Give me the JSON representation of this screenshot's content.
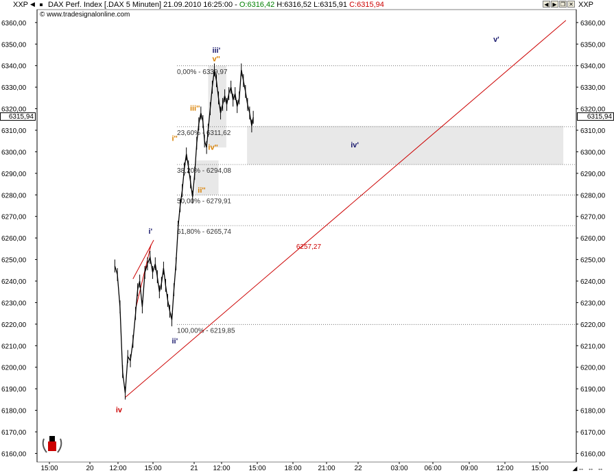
{
  "window": {
    "symbol_left": "XXP",
    "symbol_right": "XXP",
    "title": "DAX Perf. Index [.DAX  5 Minuten] 21.09.2010 16:25:00 -",
    "open": "O:6316,42",
    "high": "H:6316,52",
    "low": "L:6315,91",
    "close": "C:6315,94",
    "copyright": "© www.tradesignalonline.com",
    "last_price_label": "6315,94",
    "colors": {
      "open": "#008000",
      "close": "#cc0000",
      "text": "#000000"
    }
  },
  "chart_data": {
    "type": "line",
    "title": "DAX Perf. Index [.DAX  5 Minuten]",
    "y_ticks": [
      "6360,00",
      "6350,00",
      "6340,00",
      "6330,00",
      "6320,00",
      "6310,00",
      "6300,00",
      "6290,00",
      "6280,00",
      "6270,00",
      "6260,00",
      "6250,00",
      "6240,00",
      "6230,00",
      "6220,00",
      "6210,00",
      "6200,00",
      "6190,00",
      "6180,00",
      "6170,00",
      "6160,00"
    ],
    "y_tick_values": [
      6360,
      6350,
      6340,
      6330,
      6320,
      6310,
      6300,
      6290,
      6280,
      6270,
      6260,
      6250,
      6240,
      6230,
      6220,
      6210,
      6200,
      6190,
      6180,
      6170,
      6160
    ],
    "ylim": [
      6156,
      6366
    ],
    "x_ticks": [
      "15:00",
      "20",
      "12:00",
      "15:00",
      "21",
      "12:00",
      "15:00",
      "18:00",
      "21:00",
      "22",
      "03:00",
      "06:00",
      "09:00",
      "12:00",
      "15:00"
    ],
    "price_path": [
      [
        15.0,
        6247
      ],
      [
        15.5,
        6243
      ],
      [
        16,
        6228
      ],
      [
        16.5,
        6198
      ],
      [
        17,
        6188
      ],
      [
        17.5,
        6205
      ],
      [
        18,
        6203
      ],
      [
        18.5,
        6212
      ],
      [
        19,
        6225
      ],
      [
        19.4,
        6236
      ],
      [
        19.8,
        6240
      ],
      [
        20.3,
        6228
      ],
      [
        20.8,
        6244
      ],
      [
        21.3,
        6248
      ],
      [
        21.8,
        6251
      ],
      [
        22.3,
        6244
      ],
      [
        22.8,
        6248
      ],
      [
        23.2,
        6242
      ],
      [
        23.6,
        6235
      ],
      [
        24.0,
        6239
      ],
      [
        24.4,
        6246
      ],
      [
        24.8,
        6238
      ],
      [
        25.2,
        6231
      ],
      [
        25.6,
        6226
      ],
      [
        26.0,
        6222
      ],
      [
        26.4,
        6236
      ],
      [
        26.8,
        6248
      ],
      [
        27.2,
        6265
      ],
      [
        27.6,
        6275
      ],
      [
        28.0,
        6282
      ],
      [
        28.4,
        6292
      ],
      [
        28.8,
        6299
      ],
      [
        29.2,
        6293
      ],
      [
        29.6,
        6286
      ],
      [
        30.0,
        6279
      ],
      [
        30.4,
        6290
      ],
      [
        30.8,
        6304
      ],
      [
        31.2,
        6313
      ],
      [
        31.6,
        6318
      ],
      [
        32.0,
        6314
      ],
      [
        32.3,
        6305
      ],
      [
        32.7,
        6302
      ],
      [
        33.0,
        6310
      ],
      [
        33.4,
        6320
      ],
      [
        33.8,
        6330
      ],
      [
        34.2,
        6338
      ],
      [
        34.6,
        6333
      ],
      [
        35.0,
        6325
      ],
      [
        35.4,
        6318
      ],
      [
        35.8,
        6322
      ],
      [
        36.2,
        6326
      ],
      [
        36.6,
        6322
      ],
      [
        37.0,
        6327
      ],
      [
        37.4,
        6330
      ],
      [
        37.8,
        6324
      ],
      [
        38.2,
        6327
      ],
      [
        38.6,
        6321
      ],
      [
        39.0,
        6325
      ],
      [
        39.4,
        6338
      ],
      [
        39.8,
        6333
      ],
      [
        40.2,
        6328
      ],
      [
        40.6,
        6322
      ],
      [
        41.0,
        6318
      ],
      [
        41.4,
        6312
      ],
      [
        41.7,
        6316
      ]
    ],
    "fib_levels": [
      {
        "label": "0,00% - 6339,97",
        "value": 6339.97
      },
      {
        "label": "23,60% - 6311,62",
        "value": 6311.62
      },
      {
        "label": "38,20% - 6294,08",
        "value": 6294.08
      },
      {
        "label": "50,00% - 6279,91",
        "value": 6279.91
      },
      {
        "label": "61,80% - 6265,74",
        "value": 6265.74
      },
      {
        "label": "100,00% - 6219,85",
        "value": 6219.85
      }
    ],
    "trendline": {
      "label": "6257,27",
      "from": [
        17,
        6186
      ],
      "to": [
        102,
        6361
      ]
    },
    "trendline_small": [
      [
        19.0,
        6227
      ],
      [
        22.0,
        6257
      ]
    ],
    "zones": [
      {
        "x": [
          33.0,
          36.5
        ],
        "y": [
          6302,
          6340
        ]
      },
      {
        "x": [
          40.5,
          101.5
        ],
        "y": [
          6294,
          6312
        ]
      },
      {
        "x": [
          30.5,
          35.0
        ],
        "y": [
          6280,
          6296
        ]
      }
    ],
    "wave_labels": [
      {
        "text": "iii'",
        "x": 33.8,
        "y": 6346,
        "color": "#1a1a6e"
      },
      {
        "text": "v''",
        "x": 33.8,
        "y": 6342,
        "color": "#d98000"
      },
      {
        "text": "iii''",
        "x": 29.5,
        "y": 6319,
        "color": "#d98000"
      },
      {
        "text": "i''",
        "x": 26.0,
        "y": 6305,
        "color": "#d98000"
      },
      {
        "text": "iv''",
        "x": 33.0,
        "y": 6301,
        "color": "#d98000"
      },
      {
        "text": "ii''",
        "x": 31.0,
        "y": 6281,
        "color": "#d98000"
      },
      {
        "text": "i'",
        "x": 21.5,
        "y": 6262,
        "color": "#1a1a6e"
      },
      {
        "text": "ii'",
        "x": 26.0,
        "y": 6211,
        "color": "#1a1a6e"
      },
      {
        "text": "iv",
        "x": 15.2,
        "y": 6179,
        "color": "#cc0000"
      },
      {
        "text": "iv'",
        "x": 60.5,
        "y": 6302,
        "color": "#1a1a6e"
      },
      {
        "text": "v'",
        "x": 88.0,
        "y": 6351,
        "color": "#1a1a6e"
      }
    ],
    "grid": false,
    "colors": {
      "price": "#000000",
      "trend": "#cc0000",
      "fib": "#555555",
      "zone": "#e8e8e8",
      "fib_text": "#333333"
    }
  }
}
